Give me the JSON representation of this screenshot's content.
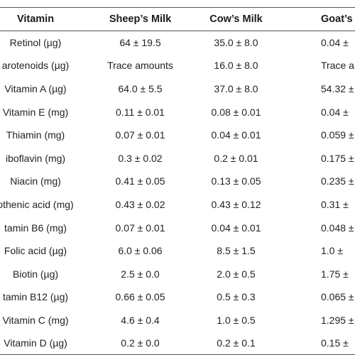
{
  "table": {
    "headers": {
      "vitamin": "Vitamin",
      "sheep": "Sheep’s Milk",
      "cow": "Cow’s Milk",
      "goat": "Goat’s"
    },
    "rows": [
      {
        "vitamin": "Retinol (µg)",
        "sheep": "64 ± 19.5",
        "cow": "35.0 ± 8.0",
        "goat": "0.04 ±"
      },
      {
        "vitamin": "arotenoids (µg)",
        "sheep": "Trace amounts",
        "cow": "16.0 ± 8.0",
        "goat": "Trace am"
      },
      {
        "vitamin": "Vitamin A (µg)",
        "sheep": "64.0 ± 5.5",
        "cow": "37.0 ± 8.0",
        "goat": "54.32 ±"
      },
      {
        "vitamin": "Vitamin E (mg)",
        "sheep": "0.11 ± 0.01",
        "cow": "0.08 ± 0.01",
        "goat": "0.04 ±"
      },
      {
        "vitamin": "Thiamin (mg)",
        "sheep": "0.07 ± 0.01",
        "cow": "0.04 ± 0.01",
        "goat": "0.059 ±"
      },
      {
        "vitamin": "iboflavin (mg)",
        "sheep": "0.3 ± 0.02",
        "cow": "0.2 ± 0.01",
        "goat": "0.175 ±"
      },
      {
        "vitamin": "Niacin (mg)",
        "sheep": "0.41 ± 0.05",
        "cow": "0.13 ± 0.05",
        "goat": "0.235 ±"
      },
      {
        "vitamin": "othenic acid (mg)",
        "sheep": "0.43 ± 0.02",
        "cow": "0.43 ± 0.12",
        "goat": "0.31 ±"
      },
      {
        "vitamin": "tamin B6 (mg)",
        "sheep": "0.07 ± 0.01",
        "cow": "0.04 ± 0.01",
        "goat": "0.048 ±"
      },
      {
        "vitamin": "Folic acid (µg)",
        "sheep": "6.0 ± 0.06",
        "cow": "8.5 ± 1.5",
        "goat": "1.0 ±"
      },
      {
        "vitamin": "Biotin (µg)",
        "sheep": "2.5 ± 0.0",
        "cow": "2.0 ± 0.5",
        "goat": "1.75 ±"
      },
      {
        "vitamin": "tamin B12 (µg)",
        "sheep": "0.66 ± 0.05",
        "cow": "0.5 ± 0.3",
        "goat": "0.065 ±"
      },
      {
        "vitamin": "Vitamin C (mg)",
        "sheep": "4.6 ± 0.4",
        "cow": "1.0 ± 0.5",
        "goat": "1.295 ±"
      },
      {
        "vitamin": "Vitamin D (µg)",
        "sheep": "0.2 ± 0.0",
        "cow": "0.2 ± 0.1",
        "goat": "0.15 ±"
      }
    ]
  }
}
